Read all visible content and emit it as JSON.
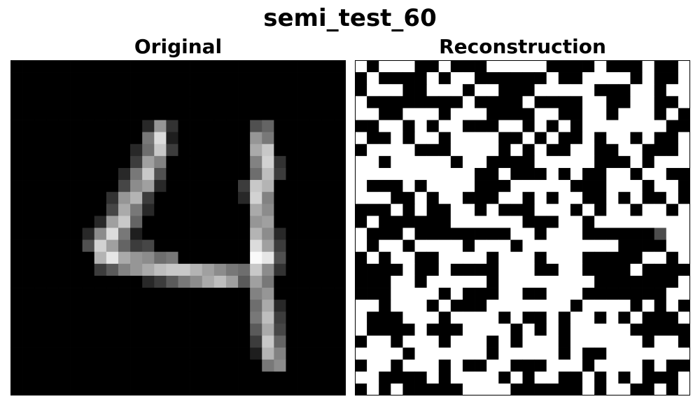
{
  "figure": {
    "title": "semi_test_60"
  },
  "chart_data": [
    {
      "type": "heatmap",
      "title": "Original",
      "colormap": "gray",
      "rows": 28,
      "cols": 28,
      "vmin": 0,
      "vmax": 255,
      "nonzero": [
        [
          5,
          11,
          40
        ],
        [
          5,
          12,
          150
        ],
        [
          5,
          13,
          50
        ],
        [
          6,
          11,
          120
        ],
        [
          6,
          12,
          220
        ],
        [
          6,
          13,
          30
        ],
        [
          7,
          10,
          40
        ],
        [
          7,
          11,
          110
        ],
        [
          7,
          12,
          200
        ],
        [
          7,
          13,
          60
        ],
        [
          8,
          10,
          60
        ],
        [
          8,
          11,
          160
        ],
        [
          8,
          12,
          130
        ],
        [
          9,
          9,
          40
        ],
        [
          9,
          10,
          120
        ],
        [
          9,
          11,
          200
        ],
        [
          9,
          12,
          80
        ],
        [
          10,
          9,
          70
        ],
        [
          10,
          10,
          140
        ],
        [
          10,
          11,
          160
        ],
        [
          10,
          12,
          40
        ],
        [
          11,
          8,
          50
        ],
        [
          11,
          9,
          150
        ],
        [
          11,
          10,
          180
        ],
        [
          11,
          11,
          60
        ],
        [
          12,
          8,
          70
        ],
        [
          12,
          9,
          170
        ],
        [
          12,
          10,
          120
        ],
        [
          12,
          11,
          40
        ],
        [
          13,
          7,
          40
        ],
        [
          13,
          8,
          160
        ],
        [
          13,
          9,
          200
        ],
        [
          13,
          10,
          100
        ],
        [
          14,
          6,
          40
        ],
        [
          14,
          7,
          140
        ],
        [
          14,
          8,
          220
        ],
        [
          14,
          9,
          120
        ],
        [
          14,
          10,
          30
        ],
        [
          15,
          6,
          80
        ],
        [
          15,
          7,
          210
        ],
        [
          15,
          8,
          160
        ],
        [
          15,
          9,
          100
        ],
        [
          15,
          10,
          60
        ],
        [
          15,
          11,
          70
        ],
        [
          16,
          7,
          180
        ],
        [
          16,
          8,
          230
        ],
        [
          16,
          9,
          170
        ],
        [
          16,
          10,
          150
        ],
        [
          16,
          11,
          140
        ],
        [
          16,
          12,
          110
        ],
        [
          16,
          13,
          120
        ],
        [
          17,
          7,
          60
        ],
        [
          17,
          8,
          90
        ],
        [
          17,
          9,
          130
        ],
        [
          17,
          10,
          150
        ],
        [
          17,
          11,
          170
        ],
        [
          17,
          12,
          190
        ],
        [
          17,
          13,
          200
        ],
        [
          17,
          14,
          200
        ],
        [
          17,
          15,
          180
        ],
        [
          17,
          16,
          160
        ],
        [
          17,
          17,
          140
        ],
        [
          17,
          18,
          120
        ],
        [
          17,
          19,
          110
        ],
        [
          18,
          11,
          40
        ],
        [
          18,
          12,
          60
        ],
        [
          18,
          13,
          90
        ],
        [
          18,
          14,
          120
        ],
        [
          18,
          15,
          140
        ],
        [
          18,
          16,
          170
        ],
        [
          18,
          17,
          190
        ],
        [
          18,
          18,
          160
        ],
        [
          18,
          19,
          90
        ],
        [
          18,
          20,
          50
        ]
      ],
      "stroke_cells": [
        [
          5,
          20,
          80
        ],
        [
          5,
          21,
          100
        ],
        [
          6,
          20,
          150
        ],
        [
          6,
          21,
          120
        ],
        [
          7,
          20,
          170
        ],
        [
          7,
          21,
          200
        ],
        [
          8,
          20,
          130
        ],
        [
          8,
          21,
          210
        ],
        [
          8,
          22,
          50
        ],
        [
          9,
          20,
          110
        ],
        [
          9,
          21,
          190
        ],
        [
          9,
          22,
          60
        ],
        [
          10,
          19,
          60
        ],
        [
          10,
          20,
          200
        ],
        [
          10,
          21,
          180
        ],
        [
          11,
          19,
          40
        ],
        [
          11,
          20,
          210
        ],
        [
          11,
          21,
          130
        ],
        [
          12,
          20,
          170
        ],
        [
          12,
          21,
          140
        ],
        [
          13,
          20,
          150
        ],
        [
          13,
          21,
          160
        ],
        [
          14,
          20,
          180
        ],
        [
          14,
          21,
          140
        ],
        [
          14,
          22,
          40
        ],
        [
          15,
          20,
          220
        ],
        [
          15,
          21,
          160
        ],
        [
          15,
          22,
          60
        ],
        [
          16,
          20,
          250
        ],
        [
          16,
          21,
          230
        ],
        [
          16,
          22,
          80
        ],
        [
          17,
          20,
          200
        ],
        [
          17,
          21,
          140
        ],
        [
          17,
          22,
          50
        ],
        [
          18,
          20,
          160
        ],
        [
          18,
          21,
          120
        ],
        [
          19,
          20,
          130
        ],
        [
          19,
          21,
          150
        ],
        [
          20,
          20,
          110
        ],
        [
          20,
          21,
          170
        ],
        [
          20,
          22,
          40
        ],
        [
          21,
          20,
          120
        ],
        [
          21,
          21,
          190
        ],
        [
          21,
          22,
          60
        ],
        [
          22,
          20,
          90
        ],
        [
          22,
          21,
          170
        ],
        [
          22,
          22,
          70
        ],
        [
          23,
          20,
          60
        ],
        [
          23,
          21,
          200
        ],
        [
          23,
          22,
          100
        ],
        [
          24,
          20,
          30
        ],
        [
          24,
          21,
          180
        ],
        [
          24,
          22,
          130
        ],
        [
          25,
          21,
          120
        ],
        [
          25,
          22,
          140
        ]
      ]
    },
    {
      "type": "heatmap",
      "title": "Reconstruction",
      "colormap": "gray",
      "rows": 28,
      "cols": 28,
      "vmin": 0,
      "vmax": 1,
      "binary_rows": [
        "1011100100011111000010001001",
        "0100001011000000100111101001",
        "0111001110110001111100011011",
        "1000000001000010000110011001",
        "1100111011100001100110111010",
        "0011010110001101010111111100",
        "1001011011110010100101101001",
        "0111100011110101001100110001",
        "1101111101100001111100010111",
        "1111111111001000101001101100",
        "1000101111000111110001110110",
        "1110010110001101011001010010",
        "0001010011010001110101101101",
        "0100000011111100011011111111",
        "1000100000000110111000000011",
        "1011011110111011111111000011",
        "0101100111101110111000001101",
        "0000100100001110011000010000",
        "0001101111101111111100000001",
        "0001111010001100111000000011",
        "1101110100011111110111101010",
        "1000111011110100101101010001",
        "1000010001111010101111100000",
        "0110111011101011101111110110",
        "1111011111101111101001111111",
        "0110111010011000111011110100",
        "1100001011110101100101010001",
        "0101000001111000000101100101"
      ],
      "gray_cells": [
        [
          14,
          25,
          0.3
        ]
      ]
    }
  ]
}
